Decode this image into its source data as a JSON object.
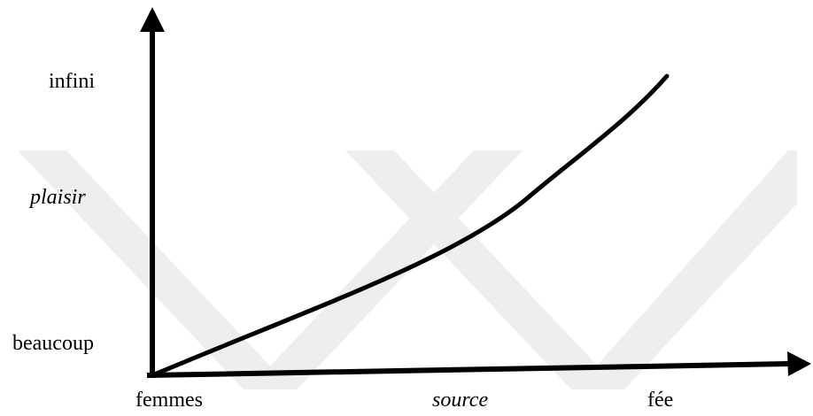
{
  "diagram": {
    "y_axis_labels": [
      {
        "text": "infini",
        "italic": false
      },
      {
        "text": "plaisir",
        "italic": true
      },
      {
        "text": "beaucoup",
        "italic": false
      }
    ],
    "x_axis_labels": [
      {
        "text": "femmes",
        "italic": false
      },
      {
        "text": "source",
        "italic": true
      },
      {
        "text": "fée",
        "italic": false
      }
    ],
    "colors": {
      "ink": "#000000",
      "watermark": "#eeeeee"
    }
  }
}
